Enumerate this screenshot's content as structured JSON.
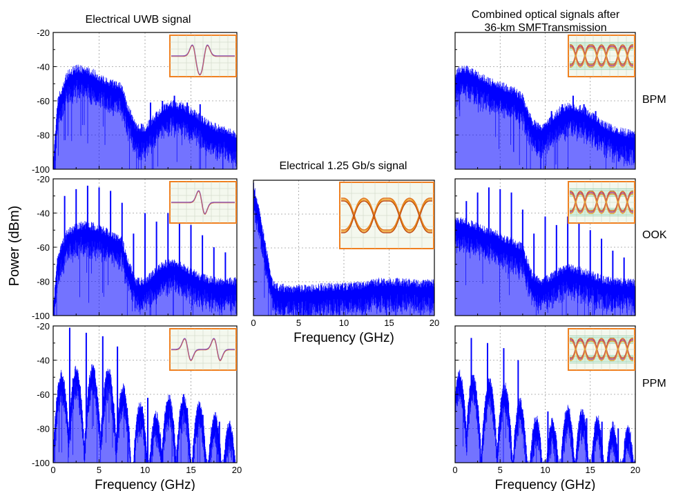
{
  "figure": {
    "ylabel": "Power (dBm)",
    "col_titles": {
      "left": "Electrical UWB signal",
      "middle": "Electrical 1.25 Gb/s signal",
      "right_line1": "Combined optical signals after",
      "right_line2": "36-km SMFTransmission"
    },
    "row_labels": [
      "BPM",
      "OOK",
      "PPM"
    ],
    "colors": {
      "trace": "#0000ff",
      "inset_frame": "#f08020",
      "inset_bg": "#f4f8ee",
      "grid": "#9a9a9a"
    }
  },
  "chart_data": [
    {
      "id": "uwb-bpm",
      "type": "line",
      "series": [
        {
          "name": "",
          "color": "#0000ff"
        }
      ],
      "xlabel": "",
      "xlim": [
        0,
        20
      ],
      "ylim": [
        -100,
        -20
      ],
      "yticks": [
        -20,
        -40,
        -60,
        -80,
        -100
      ],
      "xticks": [],
      "grid": true,
      "envelope": [
        [
          0,
          -95
        ],
        [
          0.5,
          -60
        ],
        [
          1.5,
          -45
        ],
        [
          2.5,
          -41
        ],
        [
          3.5,
          -42
        ],
        [
          4.5,
          -44
        ],
        [
          5.5,
          -48
        ],
        [
          6.5,
          -50
        ],
        [
          7.5,
          -52
        ],
        [
          8,
          -62
        ],
        [
          9,
          -75
        ],
        [
          10,
          -76
        ],
        [
          11,
          -70
        ],
        [
          12,
          -64
        ],
        [
          13,
          -62
        ],
        [
          14,
          -63
        ],
        [
          15,
          -66
        ],
        [
          16,
          -70
        ],
        [
          17,
          -74
        ],
        [
          18,
          -76
        ],
        [
          19,
          -78
        ],
        [
          20,
          -80
        ]
      ],
      "spikes": [
        [
          10.6,
          -61
        ],
        [
          11.9,
          -60
        ],
        [
          13.2,
          -57
        ],
        [
          14.6,
          -61
        ],
        [
          16.0,
          -62
        ]
      ],
      "inset": "pulse-bpm"
    },
    {
      "id": "uwb-ook",
      "type": "line",
      "series": [
        {
          "name": "",
          "color": "#0000ff"
        }
      ],
      "xlabel": "",
      "xlim": [
        0,
        20
      ],
      "ylim": [
        -100,
        -20
      ],
      "yticks": [
        -20,
        -40,
        -60,
        -80,
        -100
      ],
      "xticks": [],
      "grid": true,
      "envelope": [
        [
          0,
          -95
        ],
        [
          0.5,
          -65
        ],
        [
          1.5,
          -52
        ],
        [
          2.5,
          -48
        ],
        [
          3.5,
          -47
        ],
        [
          4.5,
          -48
        ],
        [
          5.5,
          -50
        ],
        [
          6.5,
          -53
        ],
        [
          7.5,
          -56
        ],
        [
          8,
          -66
        ],
        [
          9,
          -80
        ],
        [
          10,
          -80
        ],
        [
          11,
          -75
        ],
        [
          12,
          -70
        ],
        [
          13,
          -69
        ],
        [
          14,
          -71
        ],
        [
          15,
          -74
        ],
        [
          16,
          -77
        ],
        [
          17,
          -79
        ],
        [
          18,
          -80
        ],
        [
          19,
          -80
        ],
        [
          20,
          -80
        ]
      ],
      "spikes": [
        [
          1.25,
          -30
        ],
        [
          2.5,
          -26
        ],
        [
          3.75,
          -24
        ],
        [
          5.0,
          -25
        ],
        [
          6.25,
          -27
        ],
        [
          7.5,
          -34
        ],
        [
          8.75,
          -52
        ],
        [
          10.0,
          -40
        ],
        [
          11.25,
          -45
        ],
        [
          12.5,
          -40
        ],
        [
          13.75,
          -43
        ],
        [
          15.0,
          -47
        ],
        [
          16.25,
          -53
        ],
        [
          17.5,
          -60
        ],
        [
          18.75,
          -63
        ]
      ],
      "inset": "pulse-ook"
    },
    {
      "id": "uwb-ppm",
      "type": "line",
      "series": [
        {
          "name": "",
          "color": "#0000ff"
        }
      ],
      "xlabel": "Frequency (GHz)",
      "xlim": [
        0,
        20
      ],
      "ylim": [
        -100,
        -20
      ],
      "yticks": [
        -20,
        -40,
        -60,
        -80,
        -100
      ],
      "xticks": [
        0,
        5,
        10,
        15,
        20
      ],
      "grid": true,
      "lobes": [
        [
          0.9,
          -48
        ],
        [
          2.5,
          -45
        ],
        [
          4.3,
          -44
        ],
        [
          6.0,
          -46
        ],
        [
          7.6,
          -56
        ],
        [
          9.5,
          -66
        ],
        [
          11.2,
          -72
        ],
        [
          12.6,
          -62
        ],
        [
          14.2,
          -62
        ],
        [
          15.9,
          -66
        ],
        [
          17.6,
          -72
        ],
        [
          19.2,
          -77
        ]
      ],
      "spikes": [
        [
          1.8,
          -21
        ],
        [
          3.6,
          -24
        ],
        [
          5.4,
          -26
        ],
        [
          7.0,
          -32
        ],
        [
          10.3,
          -62
        ],
        [
          12.5,
          -64
        ],
        [
          14.6,
          -68
        ],
        [
          16.3,
          -72
        ],
        [
          18.1,
          -76
        ]
      ],
      "inset": "pulse-ppm"
    },
    {
      "id": "elec-125",
      "type": "line",
      "series": [
        {
          "name": "",
          "color": "#0000ff"
        }
      ],
      "xlabel": "Frequency (GHz)",
      "xlim": [
        0,
        20
      ],
      "ylim": [
        -100,
        -20
      ],
      "yticks": [],
      "xticks": [
        0,
        5,
        10,
        15,
        20
      ],
      "grid": true,
      "envelope": [
        [
          0,
          -22
        ],
        [
          0.4,
          -33
        ],
        [
          0.8,
          -42
        ],
        [
          1.2,
          -55
        ],
        [
          1.6,
          -66
        ],
        [
          2.0,
          -79
        ],
        [
          2.4,
          -83
        ],
        [
          4,
          -84
        ],
        [
          6,
          -84
        ],
        [
          8,
          -83
        ],
        [
          10,
          -83
        ],
        [
          12,
          -82
        ],
        [
          14,
          -80
        ],
        [
          16,
          -80
        ],
        [
          18,
          -81
        ],
        [
          20,
          -81
        ]
      ],
      "spikes": [],
      "inset": "eye-clean"
    },
    {
      "id": "opt-bpm",
      "type": "line",
      "series": [
        {
          "name": "",
          "color": "#0000ff"
        }
      ],
      "xlabel": "",
      "xlim": [
        0,
        20
      ],
      "ylim": [
        -100,
        -20
      ],
      "yticks": [],
      "xticks": [],
      "grid": true,
      "envelope": [
        [
          0,
          -45
        ],
        [
          0.5,
          -41
        ],
        [
          1.5,
          -42
        ],
        [
          2.5,
          -45
        ],
        [
          3.5,
          -48
        ],
        [
          4.5,
          -50
        ],
        [
          5.5,
          -52
        ],
        [
          6.5,
          -54
        ],
        [
          7.5,
          -58
        ],
        [
          8.5,
          -72
        ],
        [
          9.5,
          -76
        ],
        [
          10.5,
          -72
        ],
        [
          11.5,
          -66
        ],
        [
          12.5,
          -63
        ],
        [
          13.5,
          -64
        ],
        [
          14.5,
          -66
        ],
        [
          15.5,
          -70
        ],
        [
          16.5,
          -74
        ],
        [
          17.5,
          -76
        ],
        [
          18.5,
          -78
        ],
        [
          20,
          -80
        ]
      ],
      "spikes": [
        [
          10.7,
          -66
        ],
        [
          11.9,
          -62
        ],
        [
          13.1,
          -57
        ],
        [
          14.3,
          -62
        ],
        [
          15.6,
          -66
        ]
      ],
      "inset": "eye-noisy"
    },
    {
      "id": "opt-ook",
      "type": "line",
      "series": [
        {
          "name": "",
          "color": "#0000ff"
        }
      ],
      "xlabel": "",
      "xlim": [
        0,
        20
      ],
      "ylim": [
        -100,
        -20
      ],
      "yticks": [],
      "xticks": [],
      "grid": true,
      "envelope": [
        [
          0,
          -45
        ],
        [
          0.5,
          -44
        ],
        [
          1.5,
          -46
        ],
        [
          2.5,
          -48
        ],
        [
          3.5,
          -50
        ],
        [
          4.5,
          -52
        ],
        [
          5.5,
          -55
        ],
        [
          6.5,
          -57
        ],
        [
          7.5,
          -60
        ],
        [
          8.5,
          -76
        ],
        [
          9.5,
          -80
        ],
        [
          10.5,
          -78
        ],
        [
          11.5,
          -74
        ],
        [
          12.5,
          -72
        ],
        [
          13.5,
          -73
        ],
        [
          14.5,
          -75
        ],
        [
          15.5,
          -77
        ],
        [
          16.5,
          -79
        ],
        [
          17.5,
          -80
        ],
        [
          20,
          -81
        ]
      ],
      "spikes": [
        [
          1.25,
          -33
        ],
        [
          2.5,
          -28
        ],
        [
          3.75,
          -25
        ],
        [
          5.0,
          -26
        ],
        [
          6.25,
          -28
        ],
        [
          7.5,
          -38
        ],
        [
          8.75,
          -52
        ],
        [
          10.0,
          -42
        ],
        [
          11.25,
          -47
        ],
        [
          12.5,
          -42
        ],
        [
          13.75,
          -45
        ],
        [
          15.0,
          -50
        ],
        [
          16.25,
          -55
        ],
        [
          17.5,
          -62
        ],
        [
          18.75,
          -66
        ]
      ],
      "inset": "eye-noisy"
    },
    {
      "id": "opt-ppm",
      "type": "line",
      "series": [
        {
          "name": "",
          "color": "#0000ff"
        }
      ],
      "xlabel": "Frequency (GHz)",
      "xlim": [
        0,
        20
      ],
      "ylim": [
        -100,
        -20
      ],
      "yticks": [],
      "xticks": [
        0,
        5,
        10,
        15,
        20
      ],
      "grid": true,
      "lobes": [
        [
          0.5,
          -48
        ],
        [
          2.0,
          -50
        ],
        [
          3.8,
          -52
        ],
        [
          5.5,
          -55
        ],
        [
          7.2,
          -64
        ],
        [
          9.0,
          -74
        ],
        [
          10.8,
          -76
        ],
        [
          12.5,
          -68
        ],
        [
          14.1,
          -70
        ],
        [
          15.8,
          -74
        ],
        [
          17.5,
          -78
        ],
        [
          19.2,
          -80
        ]
      ],
      "spikes": [
        [
          1.8,
          -27
        ],
        [
          3.6,
          -30
        ],
        [
          5.4,
          -33
        ],
        [
          7.0,
          -40
        ],
        [
          10.3,
          -70
        ],
        [
          12.5,
          -72
        ],
        [
          14.6,
          -74
        ],
        [
          16.3,
          -76
        ],
        [
          18.1,
          -80
        ]
      ],
      "inset": "eye-noisy"
    }
  ]
}
